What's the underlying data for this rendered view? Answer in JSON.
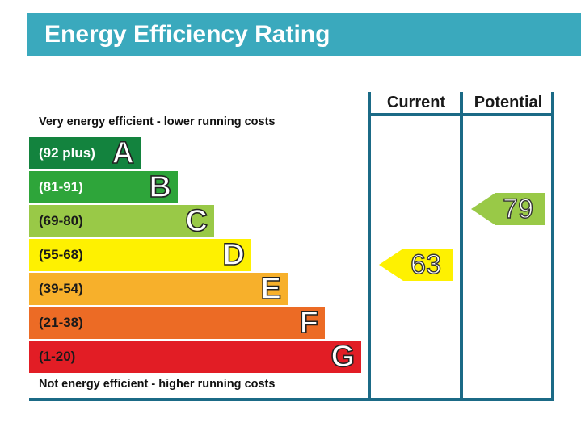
{
  "title": "Energy Efficiency Rating",
  "columns": {
    "current": "Current",
    "potential": "Potential"
  },
  "captions": {
    "top": "Very energy efficient - lower running costs",
    "bottom": "Not energy efficient - higher running costs"
  },
  "colors": {
    "title_bar": "#3aa9bd",
    "frame": "#1b6a86"
  },
  "chart_data": {
    "type": "bar",
    "title": "Energy Efficiency Rating",
    "bands": [
      {
        "letter": "A",
        "range": "(92 plus)",
        "min": 92,
        "color": "#13833e",
        "text_color": "#ffffff"
      },
      {
        "letter": "B",
        "range": "(81-91)",
        "min": 81,
        "color": "#2ea53a",
        "text_color": "#ffffff"
      },
      {
        "letter": "C",
        "range": "(69-80)",
        "min": 69,
        "color": "#99c947",
        "text_color": "#1a1a1a"
      },
      {
        "letter": "D",
        "range": "(55-68)",
        "min": 55,
        "color": "#fef101",
        "text_color": "#1a1a1a"
      },
      {
        "letter": "E",
        "range": "(39-54)",
        "min": 39,
        "color": "#f7b02b",
        "text_color": "#1a1a1a"
      },
      {
        "letter": "F",
        "range": "(21-38)",
        "min": 21,
        "color": "#ec6b25",
        "text_color": "#1a1a1a"
      },
      {
        "letter": "G",
        "range": "(1-20)",
        "min": 1,
        "color": "#e21d25",
        "text_color": "#1a1a1a"
      }
    ],
    "current": {
      "value": 63,
      "band": "D",
      "color": "#fef101"
    },
    "potential": {
      "value": 79,
      "band": "C",
      "color": "#99c947"
    }
  }
}
